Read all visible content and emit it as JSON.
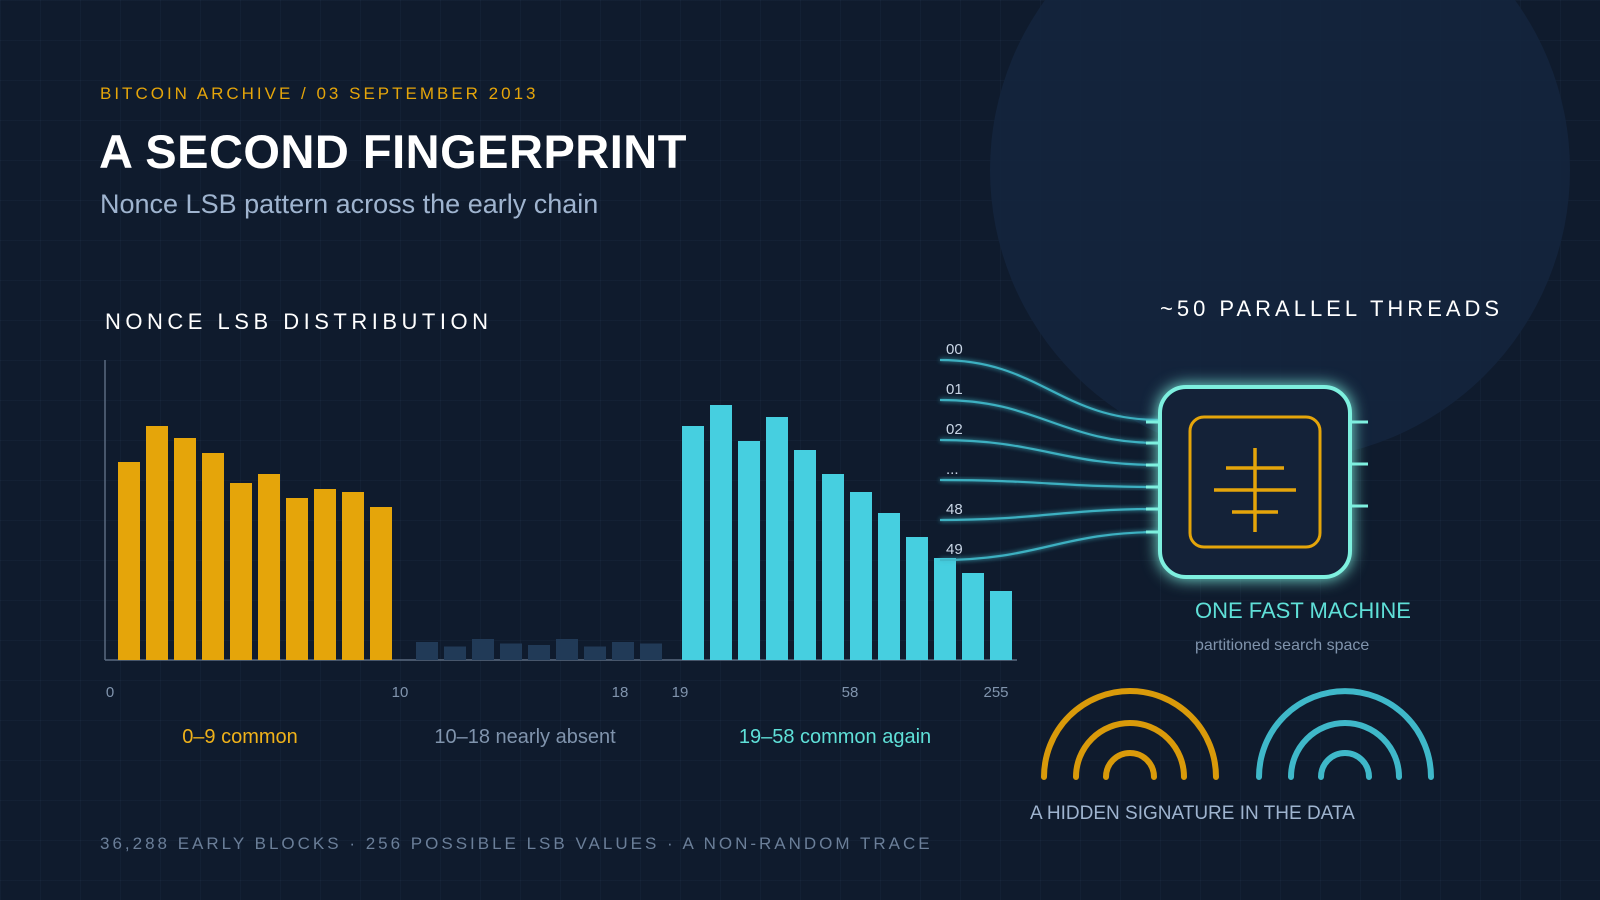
{
  "header": {
    "eyebrow": "BITCOIN ARCHIVE / 03 SEPTEMBER 2013",
    "title": "A SECOND FINGERPRINT",
    "subtitle": "Nonce LSB pattern across the early chain"
  },
  "chart_data": {
    "type": "bar",
    "title": "NONCE LSB DISTRIBUTION",
    "xlabel": "",
    "ylabel": "",
    "ylim": [
      0,
      100
    ],
    "grid": false,
    "x_ticks": [
      "0",
      "10",
      "18",
      "19",
      "58",
      "255"
    ],
    "series": [
      {
        "range": "0–9",
        "color": "#e5a50a",
        "values": [
          66,
          78,
          74,
          69,
          59,
          62,
          54,
          57,
          56,
          51
        ]
      },
      {
        "range": "10–18",
        "color": "#213a57",
        "values": [
          6,
          4.5,
          7,
          5.5,
          5,
          7,
          4.5,
          6,
          5.5
        ]
      },
      {
        "range": "19–58",
        "color": "#46cfe0",
        "values": [
          78,
          85,
          73,
          81,
          70,
          62,
          56,
          49,
          41,
          34,
          29,
          23
        ]
      }
    ],
    "range_labels": [
      {
        "text": "0–9 common",
        "color": "#f0b21a"
      },
      {
        "text": "10–18 nearly absent",
        "color": "#8094ad"
      },
      {
        "text": "19–58 common again",
        "color": "#5fe0d8"
      }
    ]
  },
  "threads": {
    "heading": "~50 PARALLEL THREADS",
    "labels": [
      "00",
      "01",
      "02",
      "...",
      "48",
      "49"
    ],
    "line_color": "#3fb8c9"
  },
  "machine": {
    "title": "ONE FAST MACHINE",
    "subtitle": "partitioned search space",
    "border_color": "#7ef0df",
    "core_color": "#e5a50a"
  },
  "signature": {
    "label": "A HIDDEN SIGNATURE IN THE DATA",
    "left_color": "#d99a0a",
    "right_color": "#3fb8c9"
  },
  "footer": {
    "text": "36,288 EARLY BLOCKS · 256 POSSIBLE LSB VALUES · A NON-RANDOM TRACE"
  }
}
